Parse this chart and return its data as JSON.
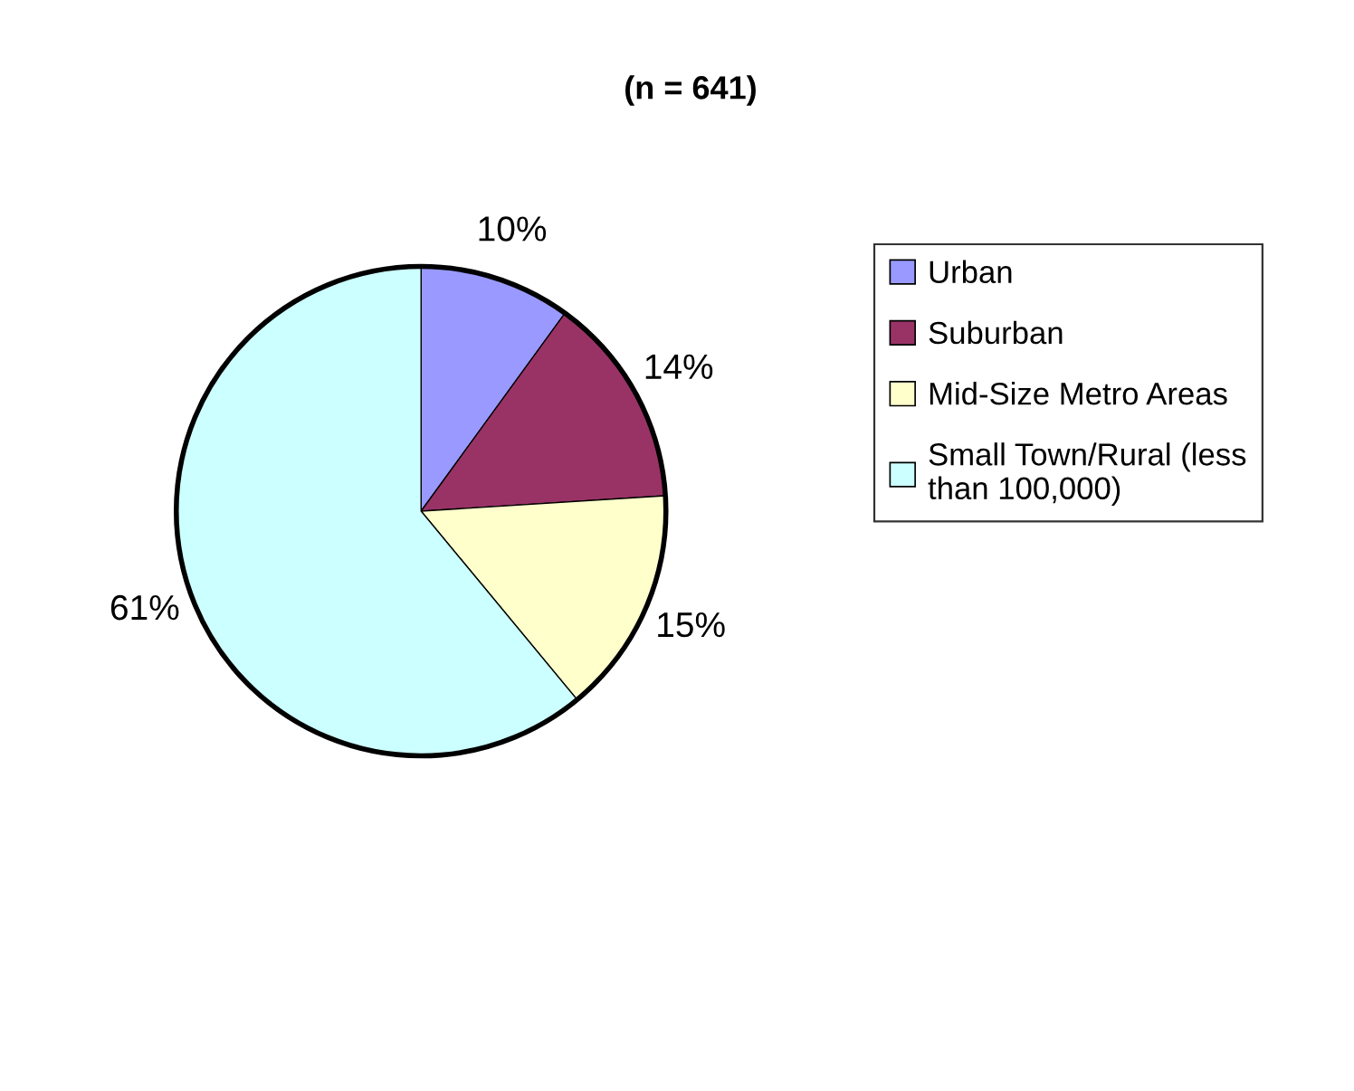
{
  "chart_data": {
    "type": "pie",
    "title": "(n = 641)",
    "categories": [
      "Urban",
      "Suburban",
      "Mid-Size Metro Areas",
      "Small Town/Rural (less\nthan 100,000)"
    ],
    "values": [
      10,
      14,
      15,
      61
    ],
    "colors": [
      "#9999ff",
      "#993366",
      "#ffffcc",
      "#ccffff"
    ],
    "value_labels": [
      "10%",
      "14%",
      "15%",
      "61%"
    ],
    "legend": "right"
  }
}
